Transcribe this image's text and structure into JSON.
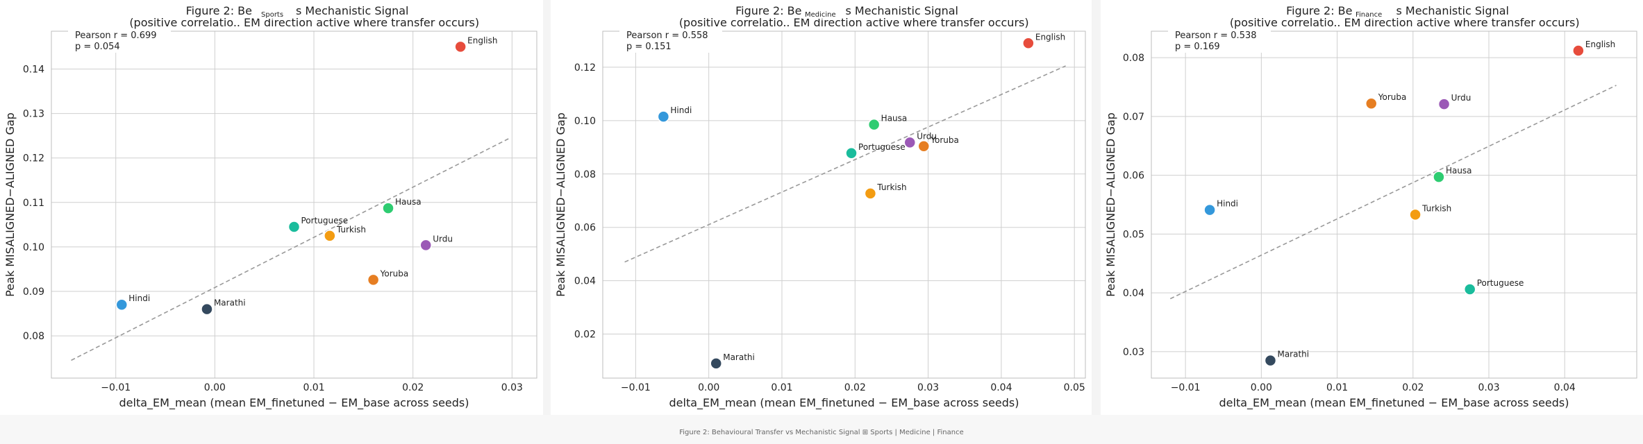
{
  "footer_caption": "Figure 2: Behavioural Transfer vs Mechanistic Signal ⊞ Sports | Medicine | Finance",
  "colors": {
    "English": "#e74c3c",
    "Hindi": "#3498db",
    "Marathi": "#34495e",
    "Portuguese": "#1abc9c",
    "Turkish": "#f39c12",
    "Hausa": "#2ecc71",
    "Urdu": "#9b59b6",
    "Yoruba": "#e67e22",
    "fit_line": "#999999",
    "grid": "#cfcfcf",
    "axis": "#bdbdbd"
  },
  "chart_data": [
    {
      "type": "scatter",
      "frame_tab": "Sports",
      "title": [
        "Figure 2: Be",
        "s Mechanistic Signal"
      ],
      "subtitle": [
        "(positive correlatio..",
        "EM direction active where transfer occurs)"
      ],
      "xlabel": "delta_EM_mean  (mean EM_finetuned − EM_base across seeds)",
      "ylabel": "Peak MISALIGNED−ALIGNED Gap",
      "annotation": [
        "Pearson r = 0.699",
        "p = 0.054"
      ],
      "xlim": [
        -0.0165,
        0.0325
      ],
      "ylim": [
        0.0705,
        0.1485
      ],
      "xticks": [
        -0.01,
        0.0,
        0.01,
        0.02,
        0.03
      ],
      "xtick_labels": [
        "−0.01",
        "0.00",
        "0.01",
        "0.02",
        "0.03"
      ],
      "yticks": [
        0.08,
        0.09,
        0.1,
        0.11,
        0.12,
        0.13,
        0.14
      ],
      "ytick_labels": [
        "0.08",
        "0.09",
        "0.10",
        "0.11",
        "0.12",
        "0.13",
        "0.14"
      ],
      "fit_line": [
        [
          -0.0145,
          0.0745
        ],
        [
          0.0298,
          0.1245
        ]
      ],
      "points": [
        {
          "name": "English",
          "x": 0.0248,
          "y": 0.145
        },
        {
          "name": "Hindi",
          "x": -0.0094,
          "y": 0.087
        },
        {
          "name": "Marathi",
          "x": -0.0008,
          "y": 0.086
        },
        {
          "name": "Portuguese",
          "x": 0.008,
          "y": 0.1045
        },
        {
          "name": "Turkish",
          "x": 0.0116,
          "y": 0.1025
        },
        {
          "name": "Hausa",
          "x": 0.0175,
          "y": 0.1087
        },
        {
          "name": "Urdu",
          "x": 0.0213,
          "y": 0.1004
        },
        {
          "name": "Yoruba",
          "x": 0.016,
          "y": 0.0926
        }
      ]
    },
    {
      "type": "scatter",
      "frame_tab": "Medicine",
      "title": [
        "Figure 2: Be",
        "s Mechanistic Signal"
      ],
      "subtitle": [
        "(positive correlatio..",
        "EM direction active where transfer occurs)"
      ],
      "xlabel": "delta_EM_mean  (mean EM_finetuned − EM_base across seeds)",
      "ylabel": "Peak MISALIGNED−ALIGNED Gap",
      "annotation": [
        "Pearson r = 0.558",
        "p = 0.151"
      ],
      "xlim": [
        -0.0145,
        0.0515
      ],
      "ylim": [
        0.0035,
        0.1335
      ],
      "xticks": [
        -0.01,
        0.0,
        0.01,
        0.02,
        0.03,
        0.04,
        0.05
      ],
      "xtick_labels": [
        "−0.01",
        "0.00",
        "0.01",
        "0.02",
        "0.03",
        "0.04",
        "0.05"
      ],
      "yticks": [
        0.02,
        0.04,
        0.06,
        0.08,
        0.1,
        0.12
      ],
      "ytick_labels": [
        "0.02",
        "0.04",
        "0.06",
        "0.08",
        "0.10",
        "0.12"
      ],
      "fit_line": [
        [
          -0.0115,
          0.047
        ],
        [
          0.0488,
          0.1205
        ]
      ],
      "points": [
        {
          "name": "English",
          "x": 0.0437,
          "y": 0.129
        },
        {
          "name": "Hindi",
          "x": -0.0062,
          "y": 0.1015
        },
        {
          "name": "Marathi",
          "x": 0.001,
          "y": 0.009
        },
        {
          "name": "Portuguese",
          "x": 0.0195,
          "y": 0.0878
        },
        {
          "name": "Turkish",
          "x": 0.0221,
          "y": 0.0727
        },
        {
          "name": "Hausa",
          "x": 0.0226,
          "y": 0.0985
        },
        {
          "name": "Urdu",
          "x": 0.0275,
          "y": 0.0918
        },
        {
          "name": "Yoruba",
          "x": 0.0294,
          "y": 0.0904
        }
      ]
    },
    {
      "type": "scatter",
      "frame_tab": "Finance",
      "title": [
        "Figure 2: Be",
        "s Mechanistic Signal"
      ],
      "subtitle": [
        "(positive correlatio..",
        "EM direction active where transfer occurs)"
      ],
      "xlabel": "delta_EM_mean  (mean EM_finetuned − EM_base across seeds)",
      "ylabel": "Peak MISALIGNED−ALIGNED Gap",
      "annotation": [
        "Pearson r = 0.538",
        "p = 0.169"
      ],
      "xlim": [
        -0.0145,
        0.0495
      ],
      "ylim": [
        0.0255,
        0.0845
      ],
      "xticks": [
        -0.01,
        0.0,
        0.01,
        0.02,
        0.03,
        0.04
      ],
      "xtick_labels": [
        "−0.01",
        "0.00",
        "0.01",
        "0.02",
        "0.03",
        "0.04"
      ],
      "yticks": [
        0.03,
        0.04,
        0.05,
        0.06,
        0.07,
        0.08
      ],
      "ytick_labels": [
        "0.03",
        "0.04",
        "0.05",
        "0.06",
        "0.07",
        "0.08"
      ],
      "fit_line": [
        [
          -0.012,
          0.039
        ],
        [
          0.0468,
          0.0753
        ]
      ],
      "points": [
        {
          "name": "English",
          "x": 0.0418,
          "y": 0.0812
        },
        {
          "name": "Hindi",
          "x": -0.0068,
          "y": 0.0541
        },
        {
          "name": "Marathi",
          "x": 0.0012,
          "y": 0.0285
        },
        {
          "name": "Portuguese",
          "x": 0.0275,
          "y": 0.0406
        },
        {
          "name": "Turkish",
          "x": 0.0203,
          "y": 0.0533
        },
        {
          "name": "Hausa",
          "x": 0.0234,
          "y": 0.0597
        },
        {
          "name": "Urdu",
          "x": 0.0241,
          "y": 0.0721
        },
        {
          "name": "Yoruba",
          "x": 0.0145,
          "y": 0.0722
        }
      ]
    }
  ]
}
